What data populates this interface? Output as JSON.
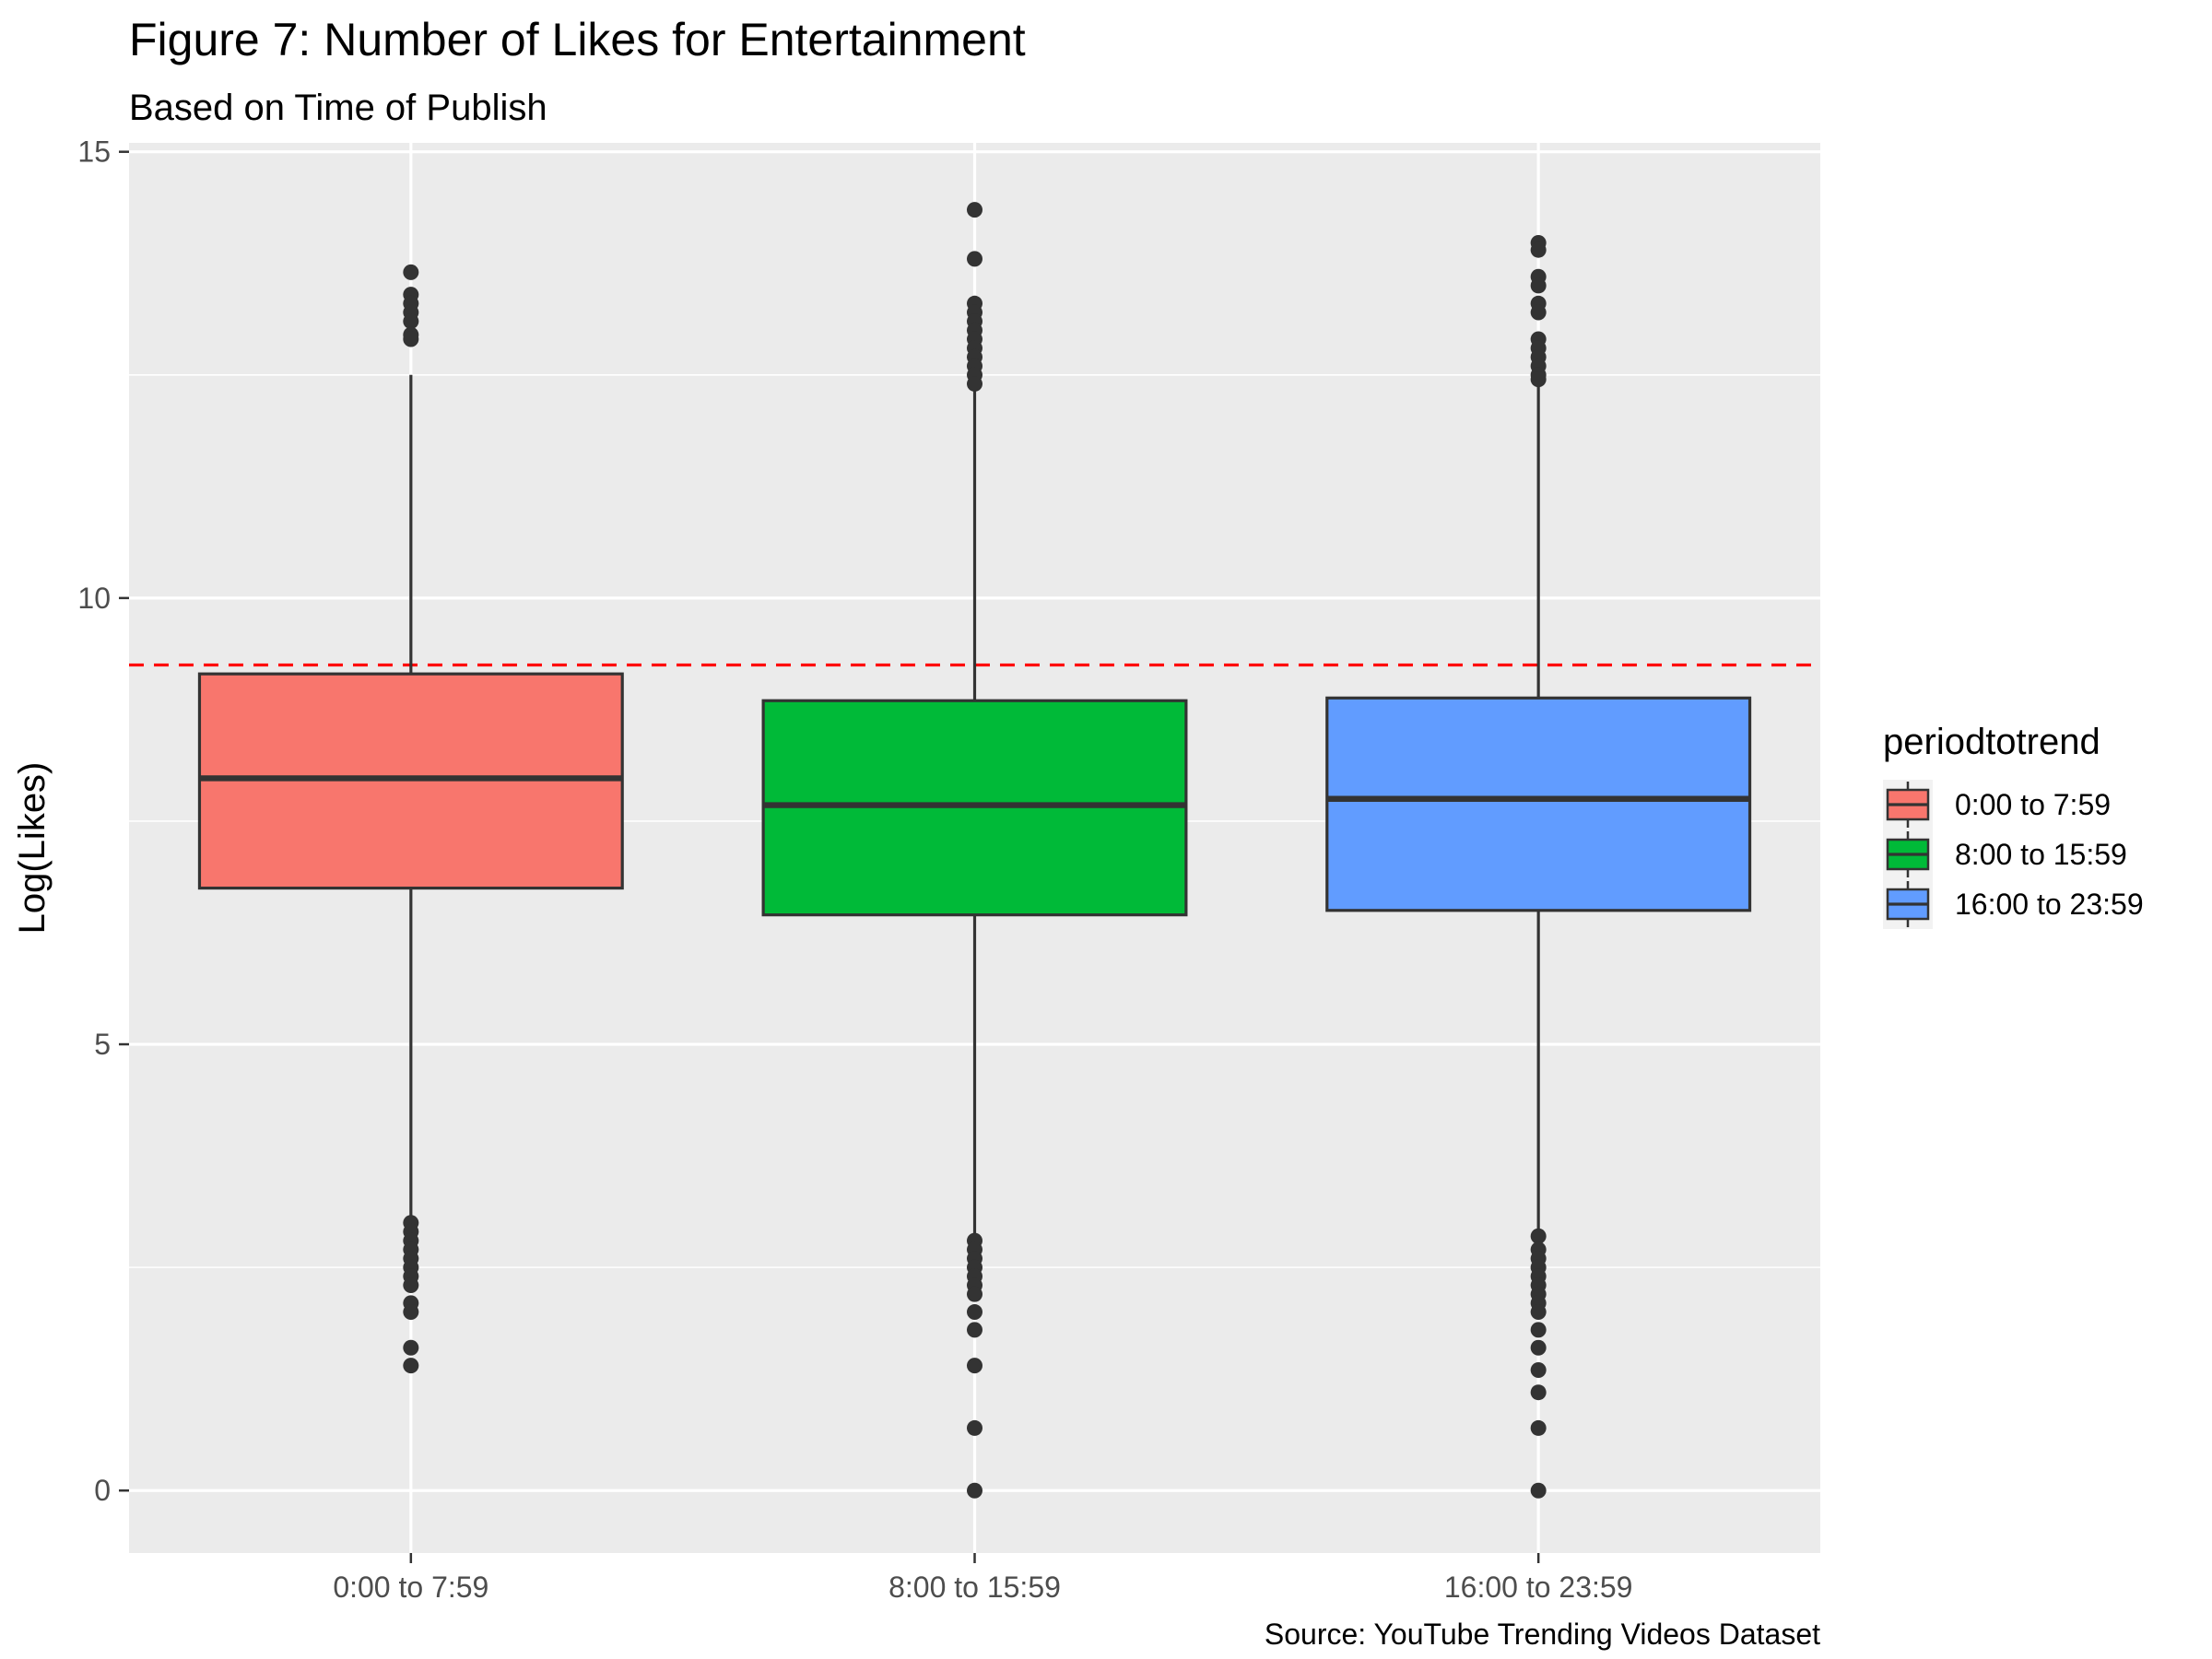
{
  "chart_data": {
    "type": "boxplot",
    "title": "Figure 7: Number of Likes for Entertainment",
    "subtitle": "Based on Time of Publish",
    "xlabel": "",
    "ylabel": "Log(Likes)",
    "caption": "Source: YouTube Trending Videos Dataset",
    "ylim": [
      -0.7,
      15.1
    ],
    "yticks": [
      0,
      5,
      10,
      15
    ],
    "grid": true,
    "reference_line": {
      "y": 9.25,
      "color": "#ff0000",
      "style": "dashed"
    },
    "categories": [
      "0:00 to 7:59",
      "8:00 to 15:59",
      "16:00 to 23:59"
    ],
    "legend": {
      "title": "periodtotrend",
      "position": "right",
      "entries": [
        "0:00 to 7:59",
        "8:00 to 15:59",
        "16:00 to 23:59"
      ]
    },
    "boxes": [
      {
        "category": "0:00 to 7:59",
        "color": "#F8766D",
        "q1": 6.75,
        "median": 7.98,
        "q3": 9.15,
        "whisker_low": 3.05,
        "whisker_high": 12.5,
        "outliers": [
          13.65,
          13.4,
          13.3,
          13.2,
          13.1,
          12.95,
          12.9,
          3.0,
          2.9,
          2.8,
          2.7,
          2.6,
          2.5,
          2.4,
          2.3,
          2.1,
          2.0,
          1.6,
          1.4
        ]
      },
      {
        "category": "8:00 to 15:59",
        "color": "#00BA38",
        "q1": 6.45,
        "median": 7.68,
        "q3": 8.85,
        "whisker_low": 2.85,
        "whisker_high": 12.35,
        "outliers": [
          14.35,
          13.8,
          13.3,
          13.2,
          13.1,
          13.0,
          12.9,
          12.8,
          12.7,
          12.6,
          12.5,
          12.4,
          2.8,
          2.7,
          2.6,
          2.5,
          2.4,
          2.3,
          2.2,
          2.0,
          1.8,
          1.4,
          0.7,
          0.0
        ]
      },
      {
        "category": "16:00 to 23:59",
        "color": "#619CFF",
        "q1": 6.5,
        "median": 7.75,
        "q3": 8.88,
        "whisker_low": 2.9,
        "whisker_high": 12.4,
        "outliers": [
          13.98,
          13.9,
          13.6,
          13.5,
          13.3,
          13.2,
          12.9,
          12.8,
          12.7,
          12.6,
          12.5,
          12.45,
          2.85,
          2.7,
          2.6,
          2.5,
          2.4,
          2.3,
          2.2,
          2.1,
          2.0,
          1.8,
          1.6,
          1.35,
          1.1,
          0.7,
          0.0
        ]
      }
    ]
  }
}
